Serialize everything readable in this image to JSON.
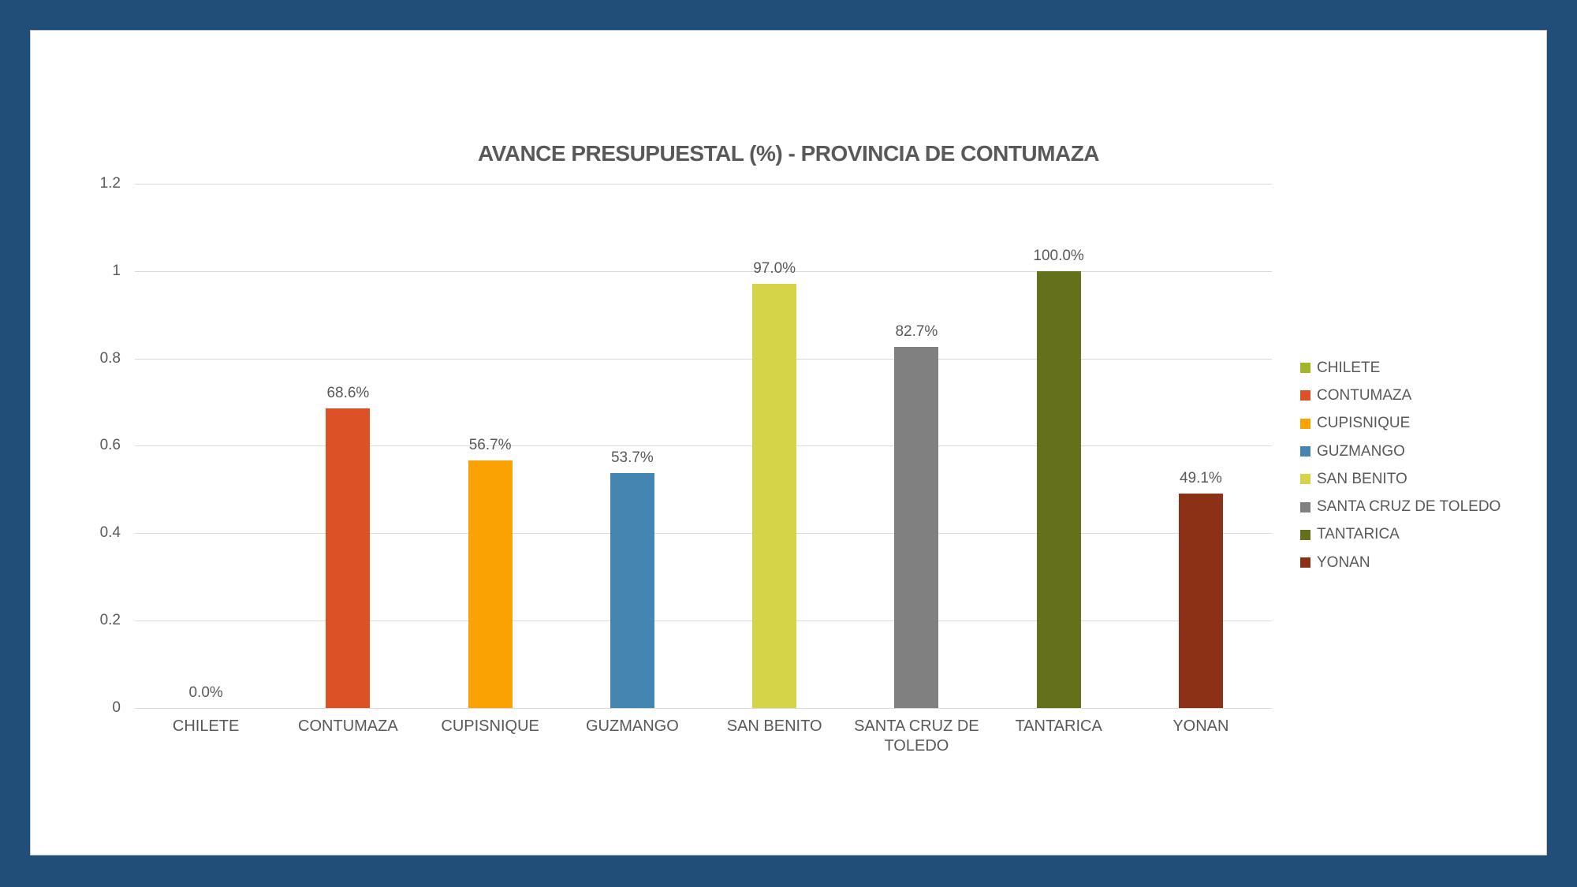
{
  "frame": {
    "background_color": "#214E79",
    "panel_background": "#FFFFFF",
    "panel_border_color": "#C9C9C9"
  },
  "styles": {
    "title_color": "#595959",
    "axis_label_color": "#595959",
    "value_label_color": "#595959",
    "grid_color": "#D9D9D9"
  },
  "chart_data": {
    "type": "bar",
    "title": "AVANCE PRESUPUESTAL (%) - PROVINCIA DE CONTUMAZA",
    "xlabel": "",
    "ylabel": "",
    "categories": [
      "CHILETE",
      "CONTUMAZA",
      "CUPISNIQUE",
      "GUZMANGO",
      "SAN BENITO",
      "SANTA CRUZ DE TOLEDO",
      "TANTARICA",
      "YONAN"
    ],
    "values": [
      0.0,
      0.686,
      0.567,
      0.537,
      0.97,
      0.827,
      1.0,
      0.491
    ],
    "value_labels": [
      "0.0%",
      "68.6%",
      "56.7%",
      "53.7%",
      "97.0%",
      "82.7%",
      "100.0%",
      "49.1%"
    ],
    "colors": [
      "#A2B728",
      "#DD5126",
      "#F9A202",
      "#4486B1",
      "#D5D348",
      "#808080",
      "#65701A",
      "#8C3115"
    ],
    "ylim": [
      0,
      1.2
    ],
    "y_ticks": [
      {
        "value": 0,
        "label": "0"
      },
      {
        "value": 0.2,
        "label": "0.2"
      },
      {
        "value": 0.4,
        "label": "0.4"
      },
      {
        "value": 0.6,
        "label": "0.6"
      },
      {
        "value": 0.8,
        "label": "0.8"
      },
      {
        "value": 1.0,
        "label": "1"
      },
      {
        "value": 1.2,
        "label": "1.2"
      }
    ],
    "grid": true,
    "legend_position": "right"
  }
}
